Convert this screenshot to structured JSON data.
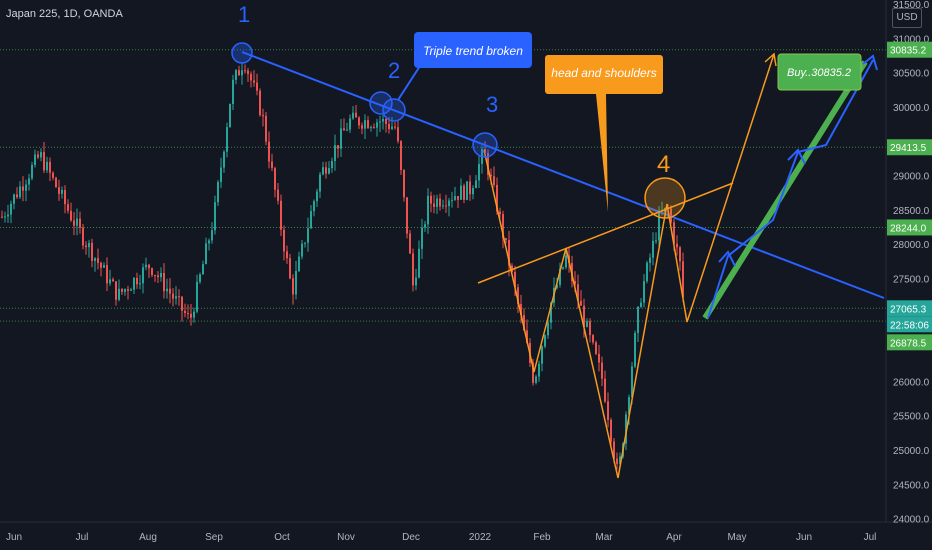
{
  "symbol": "Japan 225, 1D, OANDA",
  "currency": "USD",
  "colors": {
    "background": "#131722",
    "up": "#26a69a",
    "down": "#ef5350",
    "blue": "#2962ff",
    "orange": "#f89a1c",
    "green_label": "#4caf50",
    "grid_dotted": "#3a7d62"
  },
  "chart_data": {
    "type": "candlestick",
    "x_ticks": [
      "Jun",
      "Jul",
      "Aug",
      "Sep",
      "Oct",
      "Nov",
      "Dec",
      "2022",
      "Feb",
      "Mar",
      "Apr",
      "May",
      "Jun",
      "Jul"
    ],
    "y_ticks": [
      "24000.0",
      "24500.0",
      "25000.0",
      "25500.0",
      "26000.0",
      "27500.0",
      "28000.0",
      "28500.0",
      "29000.0",
      "30000.0",
      "30500.0",
      "31000.0",
      "31500.0"
    ],
    "ylim": [
      23950,
      31560
    ],
    "price_labels": [
      {
        "text": "30835.2",
        "value": 30835.2,
        "color": "#4caf50"
      },
      {
        "text": "29413.5",
        "value": 29413.5,
        "color": "#4caf50"
      },
      {
        "text": "28244.0",
        "value": 28244.0,
        "color": "#4caf50"
      },
      {
        "text": "27065.3",
        "value": 27065.3,
        "color": "#26a69a"
      },
      {
        "text": "22:58:06",
        "value": 26878.5,
        "color": "#26a69a"
      },
      {
        "text": "26878.5",
        "value": 26878.5,
        "color": "#4caf50"
      }
    ],
    "annotations": {
      "markers": [
        "1",
        "2",
        "3",
        "4"
      ],
      "callout_blue": "Triple trend broken",
      "callout_orange": "head and shoulders",
      "callout_green": "Buy..30835.2"
    }
  }
}
